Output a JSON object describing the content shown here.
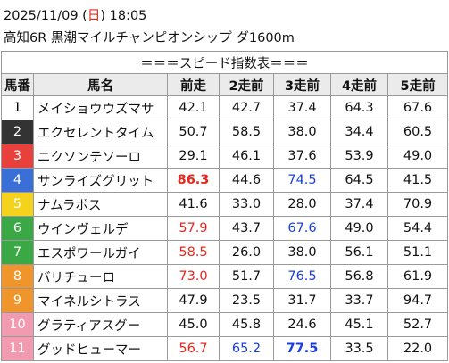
{
  "header": {
    "date_parts": [
      "2025/11/09 (",
      "日",
      ") 18:05"
    ],
    "race": "高知6R 黒潮マイルチャンピオンシップ ダ1600m"
  },
  "table": {
    "title": "＝＝＝スピード指数表＝＝＝",
    "columns": [
      "馬番",
      "馬名",
      "前走",
      "2走前",
      "3走前",
      "4走前",
      "5走前"
    ],
    "rows": [
      {
        "number": "1",
        "gate_color": "#ffffff",
        "number_color": "#000000",
        "name": "メイショウウズマサ",
        "cells": [
          {
            "text": "42.1"
          },
          {
            "text": "42.7"
          },
          {
            "text": "37.4"
          },
          {
            "text": "64.3"
          },
          {
            "text": "67.6"
          }
        ]
      },
      {
        "number": "2",
        "gate_color": "#333333",
        "number_color": "#ffffff",
        "name": "エクセレントタイム",
        "cells": [
          {
            "text": "50.7"
          },
          {
            "text": "58.5"
          },
          {
            "text": "38.0"
          },
          {
            "text": "34.4"
          },
          {
            "text": "60.5"
          }
        ]
      },
      {
        "number": "3",
        "gate_color": "#e8413c",
        "number_color": "#ffffff",
        "name": "ニクソンテソーロ",
        "cells": [
          {
            "text": "29.1"
          },
          {
            "text": "46.1"
          },
          {
            "text": "37.6"
          },
          {
            "text": "53.9"
          },
          {
            "text": "49.0"
          }
        ]
      },
      {
        "number": "4",
        "gate_color": "#3a6fd8",
        "number_color": "#ffffff",
        "name": "サンライズグリット",
        "cells": [
          {
            "text": "86.3",
            "color": "#e8261c",
            "bold": true
          },
          {
            "text": "44.6"
          },
          {
            "text": "74.5",
            "color": "#1a3fe0"
          },
          {
            "text": "64.5"
          },
          {
            "text": "41.5"
          }
        ]
      },
      {
        "number": "5",
        "gate_color": "#f5d31c",
        "number_color": "#ffffff",
        "name": "ナムラボス",
        "cells": [
          {
            "text": "41.6"
          },
          {
            "text": "33.0"
          },
          {
            "text": "28.0"
          },
          {
            "text": "37.4"
          },
          {
            "text": "70.9"
          }
        ]
      },
      {
        "number": "6",
        "gate_color": "#3aa845",
        "number_color": "#ffffff",
        "name": "ウインヴェルデ",
        "cells": [
          {
            "text": "57.9",
            "color": "#e8261c"
          },
          {
            "text": "43.7"
          },
          {
            "text": "67.6",
            "color": "#1a3fe0"
          },
          {
            "text": "49.0"
          },
          {
            "text": "54.4"
          }
        ]
      },
      {
        "number": "7",
        "gate_color": "#3aa845",
        "number_color": "#ffffff",
        "name": "エスポワールガイ",
        "cells": [
          {
            "text": "58.5",
            "color": "#e8261c"
          },
          {
            "text": "26.0"
          },
          {
            "text": "38.0"
          },
          {
            "text": "56.1"
          },
          {
            "text": "51.1"
          }
        ]
      },
      {
        "number": "8",
        "gate_color": "#f0952c",
        "number_color": "#ffffff",
        "name": "バリチューロ",
        "cells": [
          {
            "text": "73.0",
            "color": "#e8261c"
          },
          {
            "text": "51.7"
          },
          {
            "text": "76.5",
            "color": "#1a3fe0"
          },
          {
            "text": "56.8"
          },
          {
            "text": "61.9"
          }
        ]
      },
      {
        "number": "9",
        "gate_color": "#f0952c",
        "number_color": "#ffffff",
        "name": "マイネルシトラス",
        "cells": [
          {
            "text": "47.9"
          },
          {
            "text": "23.5"
          },
          {
            "text": "31.7"
          },
          {
            "text": "33.7"
          },
          {
            "text": "94.7"
          }
        ]
      },
      {
        "number": "10",
        "gate_color": "#f29ab0",
        "number_color": "#ffffff",
        "name": "グラティアスグー",
        "cells": [
          {
            "text": "45.0"
          },
          {
            "text": "45.8"
          },
          {
            "text": "24.6"
          },
          {
            "text": "45.1"
          },
          {
            "text": "52.7"
          }
        ]
      },
      {
        "number": "11",
        "gate_color": "#f29ab0",
        "number_color": "#ffffff",
        "name": "グッドヒューマー",
        "cells": [
          {
            "text": "56.7",
            "color": "#e8261c"
          },
          {
            "text": "65.2",
            "color": "#1a3fe0"
          },
          {
            "text": "77.5",
            "color": "#1a3fe0",
            "bold": true
          },
          {
            "text": "33.5"
          },
          {
            "text": "22.0"
          }
        ]
      }
    ]
  }
}
